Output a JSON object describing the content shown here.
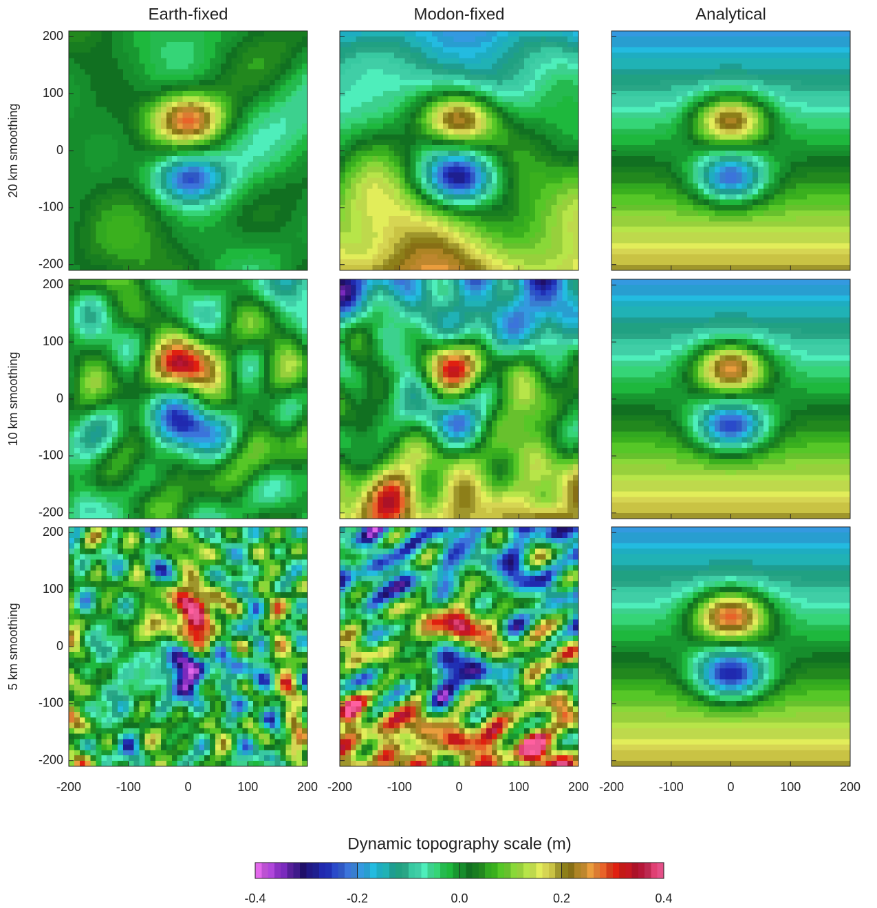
{
  "chart_data": {
    "type": "contour",
    "column_titles": [
      "Earth-fixed",
      "Modon-fixed",
      "Analytical"
    ],
    "row_labels": [
      "20 km smoothing",
      "10 km smoothing",
      "5 km smoothing"
    ],
    "xlim": [
      -200,
      200
    ],
    "xticks": [
      -200,
      -100,
      0,
      100,
      200
    ],
    "ylim": [
      -210,
      210
    ],
    "yticks": [
      -200,
      -100,
      0,
      100,
      200
    ],
    "colorbar": {
      "title": "Dynamic topography scale (m)",
      "lim": [
        -0.4,
        0.4
      ],
      "ticks": [
        -0.4,
        -0.2,
        {
          "value": 0,
          "label": "0.0"
        },
        0.2,
        0.4
      ],
      "colors": [
        "#f070f0",
        "#9030d0",
        "#201070",
        "#2030c0",
        "#4080e0",
        "#20c0e0",
        "#20a080",
        "#50f0c0",
        "#20c040",
        "#107020",
        "#40c020",
        "#a0e040",
        "#f0f060",
        "#807010",
        "#f0a040",
        "#e02010",
        "#b01030",
        "#ff60a0"
      ]
    }
  }
}
